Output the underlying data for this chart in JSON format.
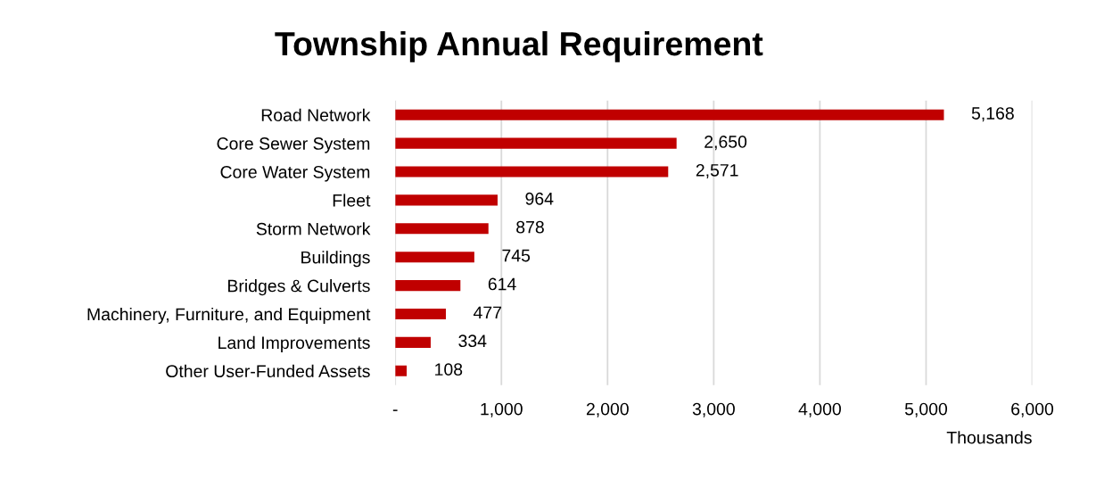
{
  "chart_data": {
    "type": "bar",
    "orientation": "horizontal",
    "title": "Township Annual Requirement",
    "xlabel": "Thousands",
    "categories": [
      "Road Network",
      "Core Sewer System",
      "Core Water System",
      "Fleet",
      "Storm Network",
      "Buildings",
      "Bridges & Culverts",
      "Machinery, Furniture, and Equipment",
      "Land Improvements",
      "Other User-Funded Assets"
    ],
    "values": [
      5168,
      2650,
      2571,
      964,
      878,
      745,
      614,
      477,
      334,
      108
    ],
    "value_labels": [
      "5,168",
      "2,650",
      "2,571",
      "964",
      "878",
      "745",
      "614",
      "477",
      "334",
      "108"
    ],
    "color": "#c00000",
    "xlim": [
      0,
      6000
    ],
    "xticks": [
      {
        "value": 0,
        "label": "-"
      },
      {
        "value": 1000,
        "label": "1,000"
      },
      {
        "value": 2000,
        "label": "2,000"
      },
      {
        "value": 3000,
        "label": "3,000"
      },
      {
        "value": 4000,
        "label": "4,000"
      },
      {
        "value": 5000,
        "label": "5,000"
      },
      {
        "value": 6000,
        "label": "6,000"
      }
    ],
    "grid": "x",
    "legend": false
  }
}
